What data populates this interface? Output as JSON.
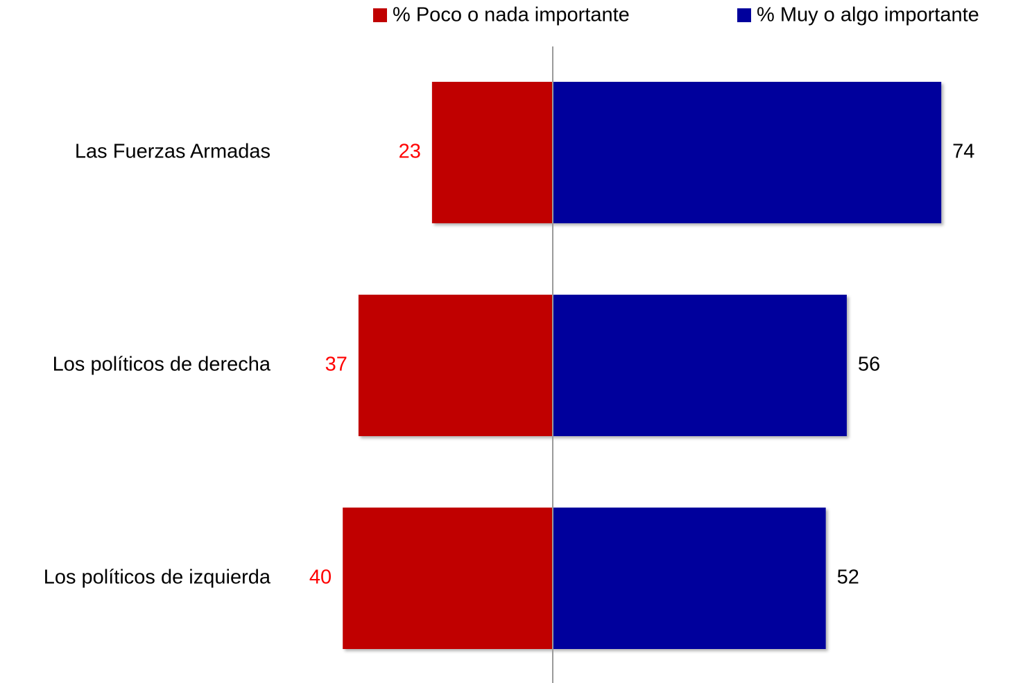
{
  "chart_data": {
    "type": "bar",
    "categories": [
      "Las Fuerzas Armadas",
      "Los políticos de derecha",
      "Los políticos de izquierda"
    ],
    "series": [
      {
        "name": "% Poco o nada importante",
        "color": "#c00000",
        "label_color": "#ff0000",
        "values": [
          23,
          37,
          40
        ]
      },
      {
        "name": "% Muy o algo importante",
        "color": "#00009c",
        "label_color": "#000000",
        "values": [
          74,
          56,
          52
        ]
      }
    ]
  }
}
